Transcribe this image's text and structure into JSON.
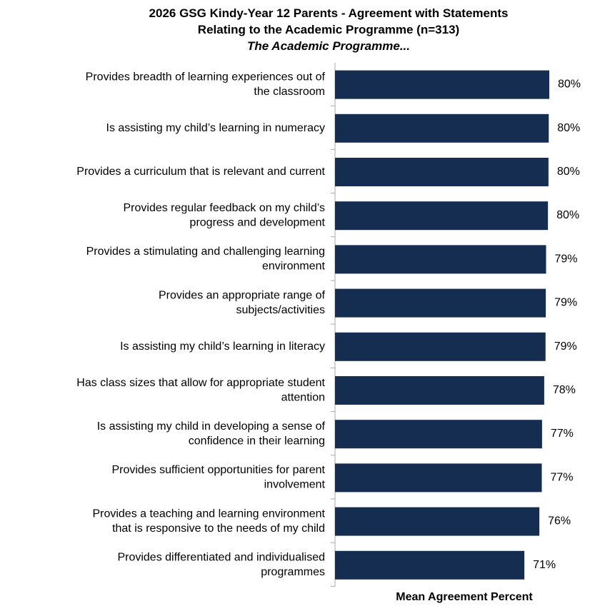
{
  "chart_data": {
    "type": "hbar",
    "title": "2026 GSG Kindy-Year 12 Parents  - Agreement with Statements\nRelating to the Academic Programme (n=313)",
    "subtitle": "The Academic Programme...",
    "x_label": "Mean Agreement Percent",
    "color": "#162d52",
    "categories": [
      "Provides breadth of learning experiences out of\nthe classroom",
      "Is assisting my child’s learning in numeracy",
      "Provides a curriculum that is relevant and current",
      "Provides regular feedback on my child’s\nprogress and development",
      "Provides a stimulating and challenging learning\nenvironment",
      "Provides an appropriate range of\nsubjects/activities",
      "Is assisting my child’s learning in literacy",
      "Has class sizes that allow for appropriate student\nattention",
      "Is assisting my child in developing a sense of\nconfidence in their learning",
      "Provides sufficient opportunities for parent\ninvolvement",
      "Provides a teaching and learning environment\nthat is responsive to the needs of my child",
      "Provides differentiated and individualised\nprogrammes"
    ],
    "values": [
      80.0,
      79.8,
      79.7,
      79.5,
      78.8,
      78.7,
      78.6,
      78.1,
      77.3,
      77.2,
      76.3,
      70.7
    ],
    "value_labels": [
      "80%",
      "80%",
      "80%",
      "80%",
      "79%",
      "79%",
      "79%",
      "78%",
      "77%",
      "77%",
      "76%",
      "71%"
    ]
  }
}
